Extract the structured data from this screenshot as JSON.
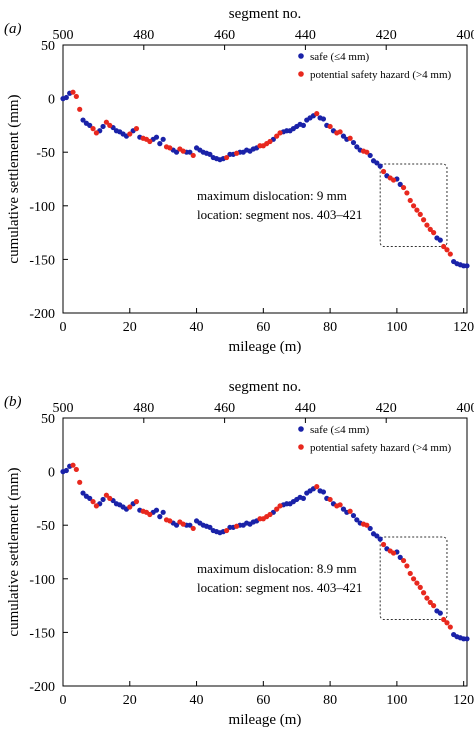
{
  "colors": {
    "safe": "#1a22a8",
    "hazard": "#e8281e",
    "axis": "#000000"
  },
  "chart_data": [
    {
      "type": "scatter",
      "panel_label": "(a)",
      "xlabel": "mileage (m)",
      "ylabel": "cumulative settlement (mm)",
      "top_axis_label": "segment no.",
      "xlim": [
        0,
        121
      ],
      "ylim": [
        -200,
        50
      ],
      "x_ticks": [
        "0",
        "20",
        "40",
        "60",
        "80",
        "100",
        "120"
      ],
      "y_ticks": [
        "50",
        "0",
        "-50",
        "-100",
        "-150",
        "-200"
      ],
      "top_ticks": [
        "500",
        "480",
        "460",
        "440",
        "420",
        "400"
      ],
      "legend": {
        "placement": "top-right",
        "safe_label": "safe (≤4 mm)",
        "hazard_label": "potential safety hazard (>4 mm)"
      },
      "annotation": {
        "line1": "maximum dislocation: 9 mm",
        "line2": "location: segment nos. 403–421",
        "box_x": [
          95,
          115
        ],
        "box_y": [
          -138,
          -61
        ]
      },
      "series": [
        {
          "name": "safe (≤4 mm)",
          "status": "safe",
          "points": [
            [
              0,
              0
            ],
            [
              1,
              1
            ],
            [
              2,
              5
            ],
            [
              6,
              -20
            ],
            [
              7,
              -23
            ],
            [
              8,
              -25
            ],
            [
              11,
              -30
            ],
            [
              12,
              -26
            ],
            [
              15,
              -27
            ],
            [
              16,
              -30
            ],
            [
              17,
              -31
            ],
            [
              18,
              -33
            ],
            [
              19,
              -35
            ],
            [
              21,
              -30
            ],
            [
              23,
              -36
            ],
            [
              27,
              -38
            ],
            [
              28,
              -36
            ],
            [
              29,
              -42
            ],
            [
              30,
              -38
            ],
            [
              33,
              -48
            ],
            [
              34,
              -50
            ],
            [
              37,
              -50
            ],
            [
              38,
              -50
            ],
            [
              40,
              -46
            ],
            [
              41,
              -48
            ],
            [
              42,
              -50
            ],
            [
              43,
              -51
            ],
            [
              44,
              -52
            ],
            [
              45,
              -55
            ],
            [
              46,
              -56
            ],
            [
              47,
              -57
            ],
            [
              48,
              -56
            ],
            [
              50,
              -52
            ],
            [
              51,
              -52
            ],
            [
              53,
              -50
            ],
            [
              54,
              -50
            ],
            [
              55,
              -48
            ],
            [
              56,
              -49
            ],
            [
              57,
              -47
            ],
            [
              58,
              -46
            ],
            [
              63,
              -38
            ],
            [
              66,
              -31
            ],
            [
              67,
              -30
            ],
            [
              68,
              -30
            ],
            [
              69,
              -28
            ],
            [
              70,
              -26
            ],
            [
              71,
              -24
            ],
            [
              72,
              -25
            ],
            [
              73,
              -20
            ],
            [
              74,
              -18
            ],
            [
              75,
              -16
            ],
            [
              77,
              -18
            ],
            [
              78,
              -19
            ],
            [
              79,
              -25
            ],
            [
              81,
              -30
            ],
            [
              84,
              -35
            ],
            [
              85,
              -38
            ],
            [
              87,
              -41
            ],
            [
              88,
              -45
            ],
            [
              89,
              -48
            ],
            [
              92,
              -53
            ],
            [
              93,
              -58
            ],
            [
              94,
              -60
            ],
            [
              95,
              -63
            ],
            [
              97,
              -72
            ],
            [
              100,
              -75
            ],
            [
              101,
              -80
            ],
            [
              112,
              -130
            ],
            [
              113,
              -132
            ],
            [
              117,
              -152
            ],
            [
              118,
              -154
            ],
            [
              119,
              -155
            ],
            [
              120,
              -156
            ],
            [
              121,
              -156
            ]
          ]
        },
        {
          "name": "potential safety hazard (>4 mm)",
          "status": "hazard",
          "points": [
            [
              3,
              6
            ],
            [
              4,
              2
            ],
            [
              5,
              -10
            ],
            [
              9,
              -28
            ],
            [
              10,
              -32
            ],
            [
              13,
              -22
            ],
            [
              14,
              -25
            ],
            [
              20,
              -33
            ],
            [
              22,
              -28
            ],
            [
              24,
              -37
            ],
            [
              25,
              -38
            ],
            [
              26,
              -40
            ],
            [
              31,
              -45
            ],
            [
              32,
              -46
            ],
            [
              35,
              -47
            ],
            [
              36,
              -49
            ],
            [
              39,
              -53
            ],
            [
              49,
              -55
            ],
            [
              52,
              -51
            ],
            [
              59,
              -44
            ],
            [
              60,
              -44
            ],
            [
              61,
              -42
            ],
            [
              62,
              -40
            ],
            [
              64,
              -35
            ],
            [
              65,
              -32
            ],
            [
              76,
              -14
            ],
            [
              80,
              -26
            ],
            [
              82,
              -32
            ],
            [
              83,
              -31
            ],
            [
              86,
              -37
            ],
            [
              90,
              -49
            ],
            [
              91,
              -50
            ],
            [
              96,
              -68
            ],
            [
              98,
              -74
            ],
            [
              99,
              -76
            ],
            [
              102,
              -83
            ],
            [
              103,
              -88
            ],
            [
              104,
              -95
            ],
            [
              105,
              -100
            ],
            [
              106,
              -104
            ],
            [
              107,
              -108
            ],
            [
              108,
              -113
            ],
            [
              109,
              -118
            ],
            [
              110,
              -122
            ],
            [
              111,
              -125
            ],
            [
              114,
              -138
            ],
            [
              115,
              -141
            ],
            [
              116,
              -145
            ]
          ]
        }
      ]
    },
    {
      "type": "scatter",
      "panel_label": "(b)",
      "xlabel": "mileage (m)",
      "ylabel": "cumulative settlement (mm)",
      "top_axis_label": "segment no.",
      "xlim": [
        0,
        121
      ],
      "ylim": [
        -200,
        50
      ],
      "x_ticks": [
        "0",
        "20",
        "40",
        "60",
        "80",
        "100",
        "120"
      ],
      "y_ticks": [
        "50",
        "0",
        "-50",
        "-100",
        "-150",
        "-200"
      ],
      "top_ticks": [
        "500",
        "480",
        "460",
        "440",
        "420",
        "400"
      ],
      "legend": {
        "placement": "top-right",
        "safe_label": "safe (≤4 mm)",
        "hazard_label": "potential safety hazard (>4 mm)"
      },
      "annotation": {
        "line1": "maximum dislocation: 8.9 mm",
        "line2": "location: segment nos. 403–421",
        "box_x": [
          95,
          115
        ],
        "box_y": [
          -138,
          -61
        ]
      },
      "series": [
        {
          "name": "safe (≤4 mm)",
          "status": "safe",
          "points": [
            [
              0,
              0
            ],
            [
              1,
              1
            ],
            [
              2,
              5
            ],
            [
              6,
              -20
            ],
            [
              7,
              -23
            ],
            [
              8,
              -25
            ],
            [
              11,
              -30
            ],
            [
              12,
              -26
            ],
            [
              15,
              -27
            ],
            [
              16,
              -30
            ],
            [
              17,
              -31
            ],
            [
              18,
              -33
            ],
            [
              19,
              -35
            ],
            [
              21,
              -30
            ],
            [
              23,
              -36
            ],
            [
              27,
              -38
            ],
            [
              28,
              -36
            ],
            [
              29,
              -42
            ],
            [
              30,
              -38
            ],
            [
              33,
              -48
            ],
            [
              34,
              -50
            ],
            [
              37,
              -50
            ],
            [
              38,
              -50
            ],
            [
              40,
              -46
            ],
            [
              41,
              -48
            ],
            [
              42,
              -50
            ],
            [
              43,
              -51
            ],
            [
              44,
              -52
            ],
            [
              45,
              -55
            ],
            [
              46,
              -56
            ],
            [
              47,
              -57
            ],
            [
              48,
              -56
            ],
            [
              50,
              -52
            ],
            [
              51,
              -52
            ],
            [
              53,
              -50
            ],
            [
              54,
              -50
            ],
            [
              55,
              -48
            ],
            [
              56,
              -49
            ],
            [
              57,
              -47
            ],
            [
              58,
              -46
            ],
            [
              63,
              -38
            ],
            [
              66,
              -31
            ],
            [
              67,
              -30
            ],
            [
              68,
              -30
            ],
            [
              69,
              -28
            ],
            [
              70,
              -26
            ],
            [
              71,
              -24
            ],
            [
              72,
              -25
            ],
            [
              73,
              -20
            ],
            [
              74,
              -18
            ],
            [
              75,
              -16
            ],
            [
              77,
              -18
            ],
            [
              78,
              -19
            ],
            [
              79,
              -25
            ],
            [
              81,
              -30
            ],
            [
              84,
              -35
            ],
            [
              85,
              -38
            ],
            [
              87,
              -41
            ],
            [
              88,
              -45
            ],
            [
              89,
              -48
            ],
            [
              92,
              -53
            ],
            [
              93,
              -58
            ],
            [
              94,
              -60
            ],
            [
              95,
              -63
            ],
            [
              97,
              -72
            ],
            [
              100,
              -75
            ],
            [
              101,
              -80
            ],
            [
              112,
              -130
            ],
            [
              113,
              -132
            ],
            [
              117,
              -152
            ],
            [
              118,
              -154
            ],
            [
              119,
              -155
            ],
            [
              120,
              -156
            ],
            [
              121,
              -156
            ]
          ]
        },
        {
          "name": "potential safety hazard (>4 mm)",
          "status": "hazard",
          "points": [
            [
              3,
              6
            ],
            [
              4,
              2
            ],
            [
              5,
              -10
            ],
            [
              9,
              -28
            ],
            [
              10,
              -32
            ],
            [
              13,
              -22
            ],
            [
              14,
              -25
            ],
            [
              20,
              -33
            ],
            [
              22,
              -28
            ],
            [
              24,
              -37
            ],
            [
              25,
              -38
            ],
            [
              26,
              -40
            ],
            [
              31,
              -45
            ],
            [
              32,
              -46
            ],
            [
              35,
              -47
            ],
            [
              36,
              -49
            ],
            [
              39,
              -53
            ],
            [
              49,
              -55
            ],
            [
              52,
              -51
            ],
            [
              59,
              -44
            ],
            [
              60,
              -44
            ],
            [
              61,
              -42
            ],
            [
              62,
              -40
            ],
            [
              64,
              -35
            ],
            [
              65,
              -32
            ],
            [
              76,
              -14
            ],
            [
              80,
              -26
            ],
            [
              82,
              -32
            ],
            [
              83,
              -31
            ],
            [
              86,
              -37
            ],
            [
              90,
              -49
            ],
            [
              91,
              -50
            ],
            [
              96,
              -68
            ],
            [
              98,
              -74
            ],
            [
              99,
              -76
            ],
            [
              102,
              -83
            ],
            [
              103,
              -88
            ],
            [
              104,
              -95
            ],
            [
              105,
              -100
            ],
            [
              106,
              -104
            ],
            [
              107,
              -108
            ],
            [
              108,
              -113
            ],
            [
              109,
              -118
            ],
            [
              110,
              -122
            ],
            [
              111,
              -125
            ],
            [
              114,
              -138
            ],
            [
              115,
              -141
            ],
            [
              116,
              -145
            ]
          ]
        }
      ]
    }
  ]
}
